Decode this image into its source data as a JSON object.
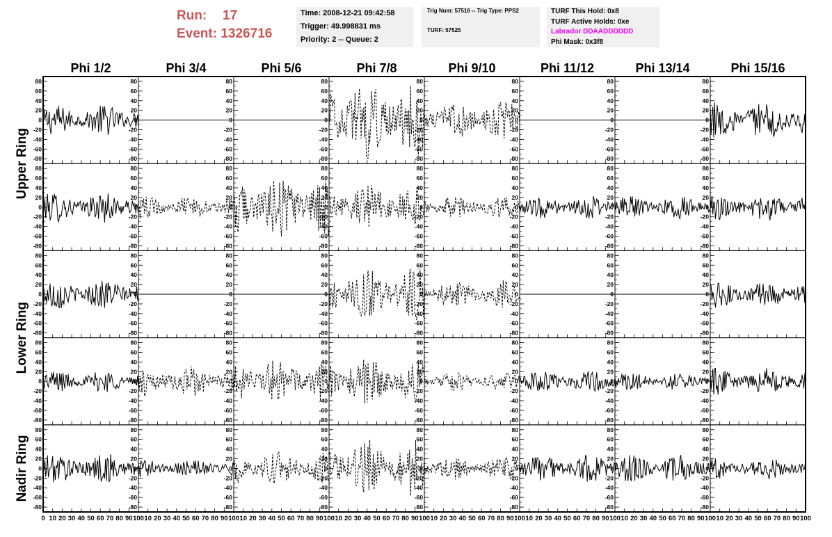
{
  "header": {
    "run_label": "Run:",
    "run_value": "17",
    "event_label": "Event:",
    "event_value": "1326716",
    "box1": {
      "time": "Time: 2008-12-21 09:42:58",
      "trigger": "Trigger: 49.998831 ms",
      "priority": "Priority: 2 -- Queue: 2"
    },
    "box2": {
      "trig": "Trig Num: 57516 -- Trig Type: PPS2",
      "turf": "TURF: 57525"
    },
    "box3": {
      "hold": "TURF This Hold: 0x8",
      "active": "TURF Active Holds: 0xe",
      "labrador": "Labrador DDAADDDDDD",
      "mask": "Phi Mask: 0x3f8"
    },
    "colors": {
      "run_text": "#cc5555",
      "labrador_text": "#ee00ee",
      "info_box": "#f0f0f0"
    }
  },
  "chart_data": {
    "type": "line",
    "columns": [
      "Phi 1/2",
      "Phi 3/4",
      "Phi 5/6",
      "Phi 7/8",
      "Phi 9/10",
      "Phi 11/12",
      "Phi 13/14",
      "Phi 15/16"
    ],
    "ring_labels": [
      {
        "name": "Upper Ring",
        "rows": [
          0,
          1
        ]
      },
      {
        "name": "Lower Ring",
        "rows": [
          2,
          3
        ]
      },
      {
        "name": "Nadir Ring",
        "rows": [
          4
        ]
      }
    ],
    "xlim": [
      0,
      100
    ],
    "ylim": [
      -90,
      90
    ],
    "yticks": [
      80,
      60,
      40,
      20,
      0,
      -20,
      -40,
      -60,
      -80
    ],
    "yticklabels": [
      "80",
      "60",
      "40",
      "20",
      "0",
      "-20",
      "-40",
      "-60",
      "-80"
    ],
    "xticks": [
      0,
      10,
      20,
      30,
      40,
      50,
      60,
      70,
      80,
      90,
      100
    ],
    "xticklabels_first": [
      "0",
      "10",
      "20",
      "30",
      "40",
      "50",
      "60",
      "70",
      "80",
      "90",
      "100"
    ],
    "xticklabels_rest": [
      "10",
      "20",
      "30",
      "40",
      "50",
      "60",
      "70",
      "80",
      "90",
      "100"
    ],
    "line_color": "#000000",
    "grid": false,
    "panels": [
      [
        {
          "style": "solid",
          "amplitude": 20
        },
        {
          "style": "flat",
          "amplitude": 0
        },
        {
          "style": "flat",
          "amplitude": 0
        },
        {
          "style": "dashed",
          "amplitude": 50
        },
        {
          "style": "dashed",
          "amplitude": 25
        },
        {
          "style": "flat",
          "amplitude": 0
        },
        {
          "style": "flat",
          "amplitude": 0
        },
        {
          "style": "solid",
          "amplitude": 25
        }
      ],
      [
        {
          "style": "solid",
          "amplitude": 20
        },
        {
          "style": "dashed",
          "amplitude": 15
        },
        {
          "style": "dashed",
          "amplitude": 40
        },
        {
          "style": "dashed",
          "amplitude": 30
        },
        {
          "style": "dashed",
          "amplitude": 15
        },
        {
          "style": "solid",
          "amplitude": 15
        },
        {
          "style": "solid",
          "amplitude": 15
        },
        {
          "style": "solid",
          "amplitude": 18
        }
      ],
      [
        {
          "style": "solid",
          "amplitude": 20
        },
        {
          "style": "flat",
          "amplitude": 0
        },
        {
          "style": "flat",
          "amplitude": 0
        },
        {
          "style": "dashed",
          "amplitude": 35
        },
        {
          "style": "dashed",
          "amplitude": 18
        },
        {
          "style": "flat",
          "amplitude": 0
        },
        {
          "style": "flat",
          "amplitude": 0
        },
        {
          "style": "solid",
          "amplitude": 18
        }
      ],
      [
        {
          "style": "solid",
          "amplitude": 15
        },
        {
          "style": "dashed",
          "amplitude": 20
        },
        {
          "style": "dashed",
          "amplitude": 30
        },
        {
          "style": "dashed",
          "amplitude": 30
        },
        {
          "style": "dashed",
          "amplitude": 12
        },
        {
          "style": "solid",
          "amplitude": 15
        },
        {
          "style": "solid",
          "amplitude": 12
        },
        {
          "style": "solid",
          "amplitude": 18
        }
      ],
      [
        {
          "style": "solid",
          "amplitude": 20
        },
        {
          "style": "solid",
          "amplitude": 12
        },
        {
          "style": "dashed",
          "amplitude": 22
        },
        {
          "style": "dashed",
          "amplitude": 38
        },
        {
          "style": "dashed",
          "amplitude": 15
        },
        {
          "style": "solid",
          "amplitude": 18
        },
        {
          "style": "solid",
          "amplitude": 18
        },
        {
          "style": "solid",
          "amplitude": 15
        }
      ]
    ]
  }
}
